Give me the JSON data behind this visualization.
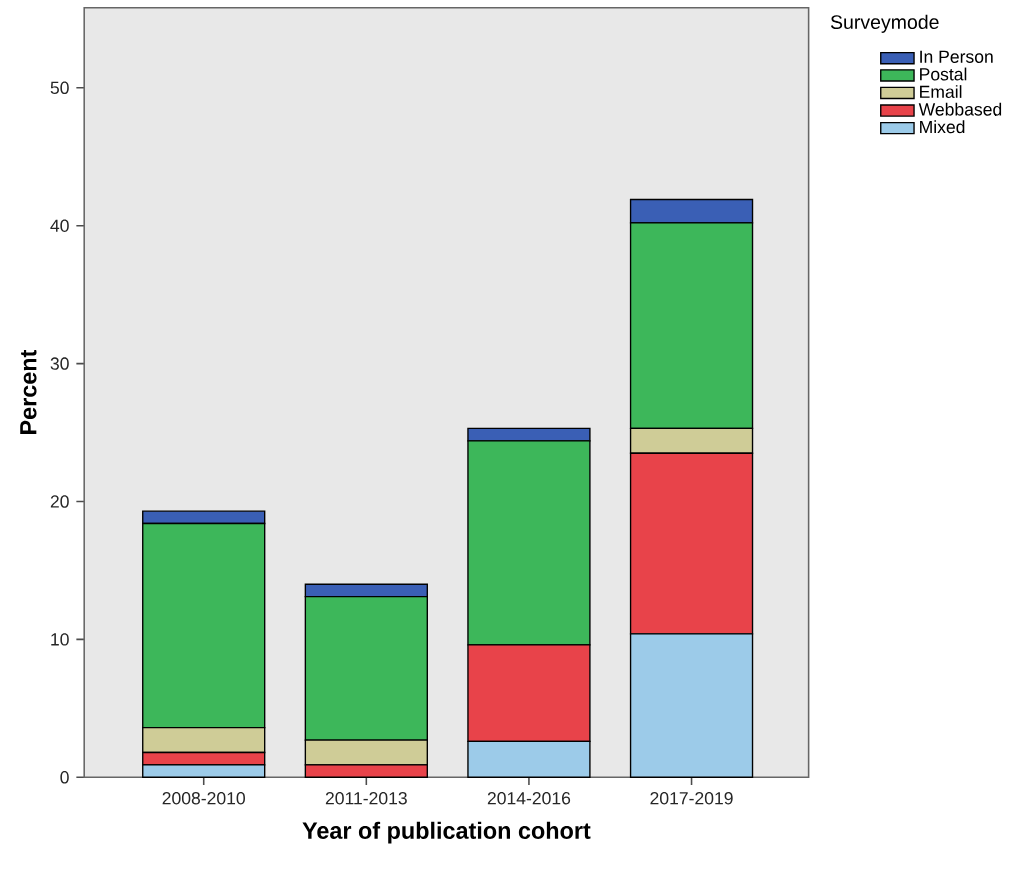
{
  "chart_data": {
    "type": "bar",
    "stacked": true,
    "xlabel": "Year of publication cohort",
    "ylabel": "Percent",
    "legend_title": "Surveymode",
    "legend": "top right",
    "grid": false,
    "categories": [
      "2008-2010",
      "2011-2013",
      "2014-2016",
      "2017-2019"
    ],
    "ylim": [
      0,
      55.8
    ],
    "yticks": [
      0,
      10,
      20,
      30,
      40,
      50
    ],
    "series": [
      {
        "name": "Mixed",
        "color": "#9ccbe9",
        "values": [
          0.9,
          0,
          2.6,
          10.4
        ]
      },
      {
        "name": "Webbased",
        "color": "#e8434a",
        "values": [
          0.9,
          0.9,
          7.0,
          13.1
        ]
      },
      {
        "name": "Email",
        "color": "#cfcc97",
        "values": [
          1.8,
          1.8,
          0,
          1.8
        ]
      },
      {
        "name": "Postal",
        "color": "#3db75a",
        "values": [
          14.8,
          10.4,
          14.8,
          14.9
        ]
      },
      {
        "name": "In Person",
        "color": "#3a5fb5",
        "values": [
          0.9,
          0.9,
          0.9,
          1.7
        ]
      }
    ]
  }
}
